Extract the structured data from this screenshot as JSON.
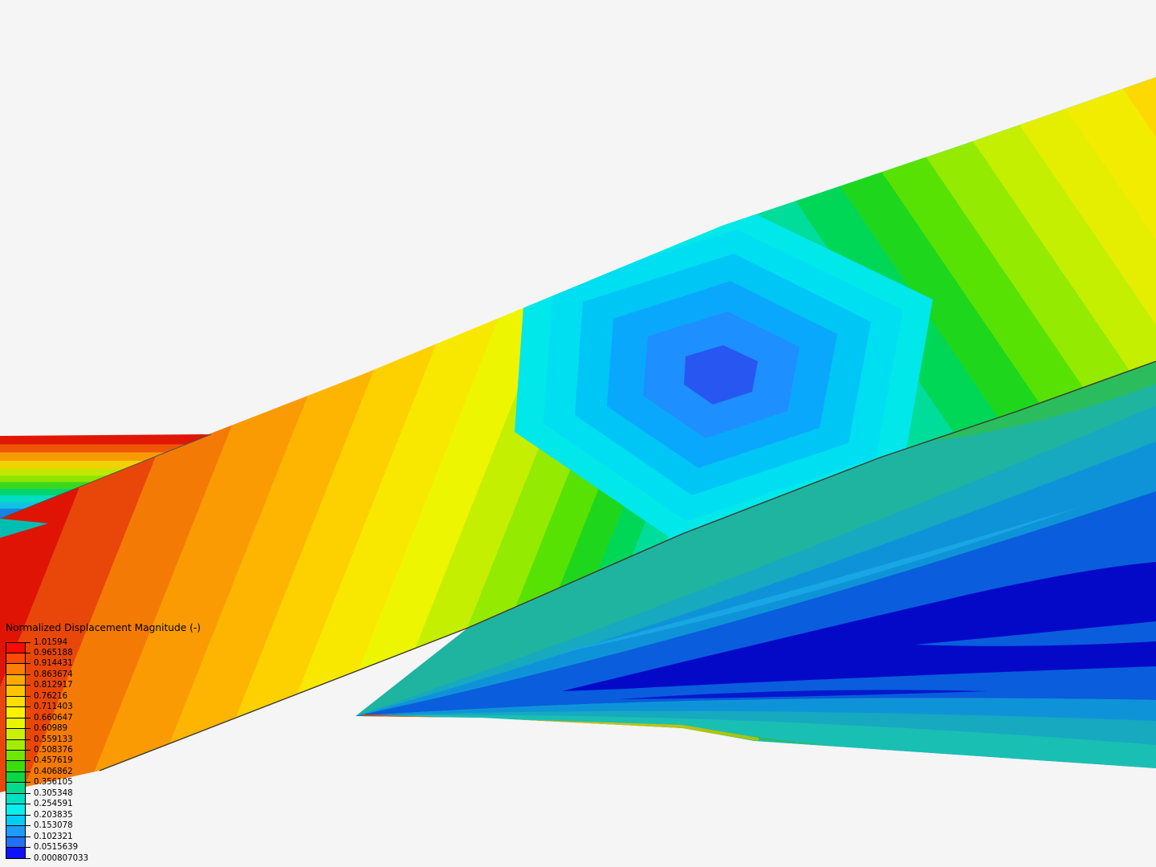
{
  "viewport": {
    "description": "3D post-processing view of two crossing plates with displacement contours"
  },
  "legend": {
    "title": "Normalized Displacement Magnitude (-)",
    "values": [
      "1.01594",
      "0.965188",
      "0.914431",
      "0.863674",
      "0.812917",
      "0.76216",
      "0.711403",
      "0.660647",
      "0.60989",
      "0.559133",
      "0.508376",
      "0.457619",
      "0.406862",
      "0.356105",
      "0.305348",
      "0.254591",
      "0.203835",
      "0.153078",
      "0.102321",
      "0.0515639",
      "0.000807033"
    ],
    "colors": [
      "#fb0b04",
      "#fb4a04",
      "#fc7e03",
      "#fdab02",
      "#fdc501",
      "#fede01",
      "#fdf201",
      "#e9f602",
      "#c9f102",
      "#a2ed02",
      "#70e603",
      "#3bdd0d",
      "#0cd643",
      "#02da8c",
      "#04e0c4",
      "#0aeef0",
      "#04ccf8",
      "#1f9bfb",
      "#2470f5",
      "#0f14f5"
    ]
  },
  "scene": {
    "background": "#f5f5f6",
    "max_value": "1.01594",
    "min_value": "0.000807033",
    "max_color": "#fb0b04",
    "min_color": "#0f14f5",
    "upper_band_ring_colors": [
      "#00e8ea",
      "#00dff2",
      "#00c6f6",
      "#0aa8fc",
      "#1e8ffe",
      "#2757f0"
    ],
    "lower_band_shade_colors": [
      "#2bbc5e",
      "#1fb496",
      "#16a9c0",
      "#0f93d8",
      "#0a5ddc",
      "#0409c8",
      "#1abfb4"
    ]
  }
}
